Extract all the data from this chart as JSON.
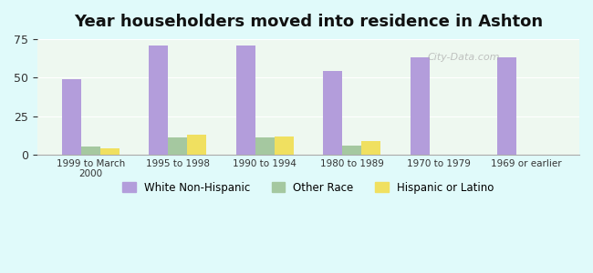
{
  "title": "Year householders moved into residence in Ashton",
  "categories": [
    "1999 to March\n2000",
    "1995 to 1998",
    "1990 to 1994",
    "1980 to 1989",
    "1970 to 1979",
    "1969 or earlier"
  ],
  "series": {
    "White Non-Hispanic": [
      49,
      71,
      71,
      54,
      63,
      63
    ],
    "Other Race": [
      5,
      11,
      11,
      6,
      0,
      0
    ],
    "Hispanic or Latino": [
      4,
      13,
      12,
      9,
      0,
      0
    ]
  },
  "colors": {
    "White Non-Hispanic": "#b39ddb",
    "Other Race": "#a5c8a0",
    "Hispanic or Latino": "#f0e060"
  },
  "ylim": [
    0,
    75
  ],
  "yticks": [
    0,
    25,
    50,
    75
  ],
  "background_color": "#e0fafa",
  "plot_bg_color_top": "#e8f5e9",
  "plot_bg_color_bottom": "#f0fdf0",
  "watermark": "City-Data.com",
  "legend_entries": [
    "White Non-Hispanic",
    "Other Race",
    "Hispanic or Latino"
  ]
}
